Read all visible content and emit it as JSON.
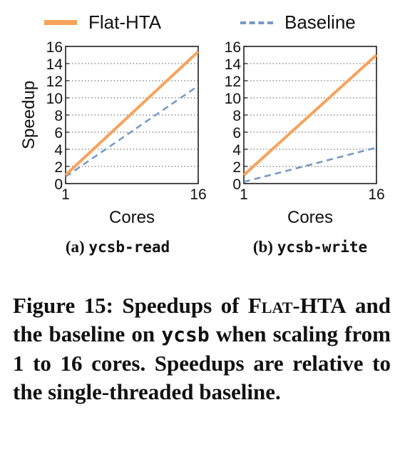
{
  "legend": {
    "items": [
      {
        "label": "Flat-HTA",
        "color": "#f6a35c",
        "style": "solid"
      },
      {
        "label": "Baseline",
        "color": "#7499c6",
        "style": "dashed"
      }
    ]
  },
  "subcaptions": [
    {
      "prefix": "(a)",
      "code": "ycsb-read"
    },
    {
      "prefix": "(b)",
      "code": "ycsb-write"
    }
  ],
  "figure_caption": {
    "label": "Figure 15:",
    "part1": "Speedups of",
    "sys_name": "Flat-HTA",
    "part2": "and the baseline on",
    "code": "ycsb",
    "part3": "when scaling from 1 to 16 cores. Speedups are relative to the single-threaded baseline."
  },
  "chart_data": [
    {
      "type": "line",
      "xlabel": "Cores",
      "ylabel": "Speedup",
      "xlim": [
        1,
        16
      ],
      "ylim": [
        0,
        16
      ],
      "xticks": [
        "1",
        "16"
      ],
      "yticks": [
        "0",
        "2",
        "4",
        "6",
        "8",
        "10",
        "12",
        "14",
        "16"
      ],
      "grid": "horizontal-dotted",
      "series": [
        {
          "name": "Flat-HTA",
          "x": [
            1,
            16
          ],
          "y": [
            1.0,
            15.4
          ]
        },
        {
          "name": "Baseline",
          "x": [
            1,
            16
          ],
          "y": [
            0.8,
            11.4
          ]
        }
      ]
    },
    {
      "type": "line",
      "xlabel": "Cores",
      "ylabel": "",
      "xlim": [
        1,
        16
      ],
      "ylim": [
        0,
        16
      ],
      "xticks": [
        "1",
        "16"
      ],
      "yticks": [
        "0",
        "2",
        "4",
        "6",
        "8",
        "10",
        "12",
        "14",
        "16"
      ],
      "grid": "horizontal-dotted",
      "series": [
        {
          "name": "Flat-HTA",
          "x": [
            1,
            16
          ],
          "y": [
            1.0,
            15.0
          ]
        },
        {
          "name": "Baseline",
          "x": [
            1,
            16
          ],
          "y": [
            0.2,
            4.2
          ]
        }
      ]
    }
  ]
}
